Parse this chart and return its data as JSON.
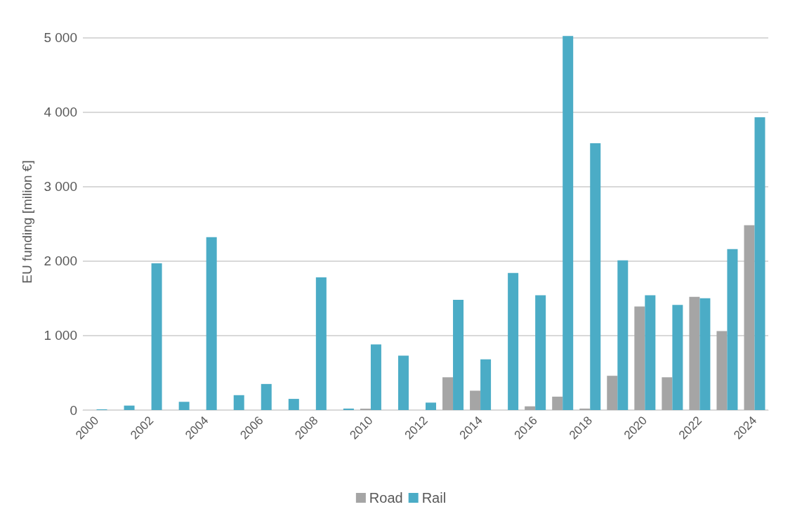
{
  "chart_data": {
    "type": "bar",
    "ylabel": "EU funding [milion €]",
    "categories": [
      "2000",
      null,
      "2002",
      null,
      "2004",
      null,
      "2006",
      null,
      "2008",
      null,
      "2010",
      null,
      "2012",
      null,
      "2014",
      null,
      "2016",
      null,
      "2018",
      null,
      "2020",
      null,
      "2022",
      null,
      "2024"
    ],
    "series": [
      {
        "name": "Road",
        "color": "#a5a5a5",
        "values": [
          0,
          0,
          0,
          0,
          0,
          0,
          0,
          0,
          0,
          0,
          20,
          0,
          0,
          440,
          260,
          0,
          50,
          180,
          20,
          460,
          1390,
          440,
          1520,
          1060,
          2480
        ]
      },
      {
        "name": "Rail",
        "color": "#4bacc6",
        "values": [
          10,
          60,
          1970,
          110,
          2320,
          200,
          350,
          150,
          1780,
          20,
          880,
          730,
          100,
          1480,
          680,
          1840,
          1540,
          5020,
          3580,
          2010,
          1540,
          1410,
          1500,
          2160,
          3930
        ]
      }
    ],
    "ylim": [
      0,
      5050
    ],
    "yticks": [
      {
        "value": 0,
        "label": "0"
      },
      {
        "value": 1000,
        "label": "1 000"
      },
      {
        "value": 2000,
        "label": "2 000"
      },
      {
        "value": 3000,
        "label": "3 000"
      },
      {
        "value": 4000,
        "label": "4 000"
      },
      {
        "value": 5000,
        "label": "5 000"
      }
    ],
    "grid": "y",
    "legend": "bottom"
  }
}
